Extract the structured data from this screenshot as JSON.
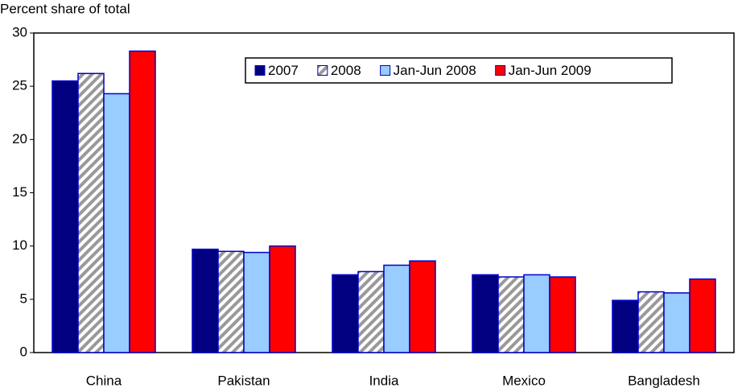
{
  "chart_data": {
    "type": "bar",
    "y_label": "Percent share of total",
    "categories": [
      "China",
      "Pakistan",
      "India",
      "Mexico",
      "Bangladesh"
    ],
    "series": [
      {
        "name": "2007",
        "color": "#000080",
        "values": [
          25.5,
          9.7,
          7.3,
          7.3,
          4.9
        ]
      },
      {
        "name": "2008",
        "color": "#999999",
        "pattern": "hatch",
        "values": [
          26.2,
          9.5,
          7.6,
          7.1,
          5.7
        ]
      },
      {
        "name": "Jan-Jun 2008",
        "color": "#99ccff",
        "values": [
          24.3,
          9.4,
          8.2,
          7.3,
          5.6
        ]
      },
      {
        "name": "Jan-Jun 2009",
        "color": "#ff0000",
        "values": [
          28.3,
          10.0,
          8.6,
          7.1,
          6.9
        ]
      }
    ],
    "ylim": [
      0,
      30
    ],
    "yticks": [
      0,
      5,
      10,
      15,
      20,
      25,
      30
    ],
    "grid": false,
    "legend": "top"
  }
}
